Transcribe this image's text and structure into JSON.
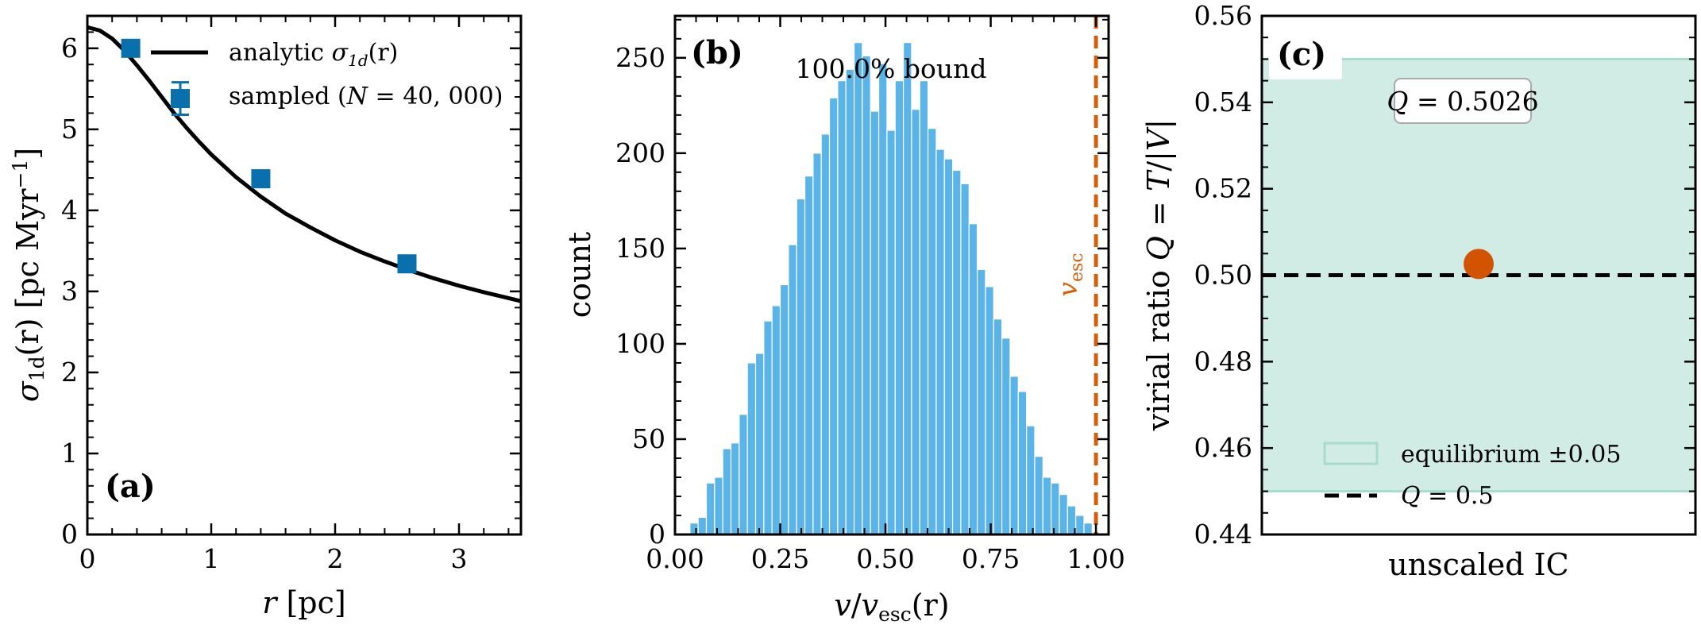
{
  "colors": {
    "analytic_line": "#000000",
    "sampled_marker": "#0a6fad",
    "histogram_bar": "#5ab4e8",
    "vesc_line": "#d35f0a",
    "equilibrium_band": "#d1ece4",
    "equilibrium_edge": "#a9dbcb",
    "virial_point": "#d35400",
    "q_line": "#000000"
  },
  "chart_data": [
    {
      "type": "line",
      "panel_tag": "(a)",
      "xlabel_var": "r",
      "xlabel_unit": " [pc]",
      "ylabel_var": "σ",
      "ylabel_sub": "1d",
      "ylabel_tail": "(r) [pc Myr",
      "ylabel_sup": "−1",
      "ylabel_end": "]",
      "xlim": [
        0,
        3.5
      ],
      "ylim": [
        0,
        6.4
      ],
      "x_ticks": [
        0,
        1,
        2,
        3
      ],
      "x_tick_labels": [
        "0",
        "1",
        "2",
        "3"
      ],
      "y_ticks": [
        0,
        1,
        2,
        3,
        4,
        5,
        6
      ],
      "y_tick_labels": [
        "0",
        "1",
        "2",
        "3",
        "4",
        "5",
        "6"
      ],
      "legend_position": "top-right",
      "series": [
        {
          "name": "analytic σ1d(r)",
          "legend_main": "analytic ",
          "legend_var": "σ",
          "legend_sub": "1d",
          "legend_tail": "(r)",
          "kind": "line",
          "x": [
            0,
            0.1,
            0.2,
            0.3,
            0.4,
            0.5,
            0.6,
            0.7,
            0.8,
            0.9,
            1.0,
            1.2,
            1.4,
            1.6,
            1.8,
            2.0,
            2.2,
            2.4,
            2.6,
            2.8,
            3.0,
            3.2,
            3.5
          ],
          "y": [
            6.26,
            6.22,
            6.12,
            5.97,
            5.79,
            5.6,
            5.4,
            5.2,
            5.02,
            4.85,
            4.69,
            4.41,
            4.17,
            3.96,
            3.79,
            3.63,
            3.49,
            3.37,
            3.26,
            3.16,
            3.07,
            2.99,
            2.88
          ]
        },
        {
          "name": "sampled (N = 40,000)",
          "legend_main": "sampled (",
          "legend_var": "N",
          "legend_tail": " = 40, 000)",
          "kind": "errorbar",
          "x": [
            0.35,
            0.75,
            1.4,
            2.58
          ],
          "y": [
            6.0,
            5.38,
            4.39,
            3.34
          ],
          "yerr": [
            0.03,
            0.2,
            0.04,
            0.03
          ]
        }
      ]
    },
    {
      "type": "bar",
      "panel_tag": "(b)",
      "annotation": "100.0% bound",
      "vline_label": "v",
      "vline_label_sub": "esc",
      "vline_x": 1.0,
      "xlabel_var": "v",
      "xlabel_sep": "/",
      "xlabel_var2": "v",
      "xlabel_sub": "esc",
      "xlabel_tail": "(r)",
      "ylabel": "count",
      "xlim": [
        0.0,
        1.03
      ],
      "ylim": [
        0,
        272
      ],
      "x_ticks": [
        0.0,
        0.25,
        0.5,
        0.75,
        1.0
      ],
      "x_tick_labels": [
        "0.00",
        "0.25",
        "0.50",
        "0.75",
        "1.00"
      ],
      "y_ticks": [
        0,
        50,
        100,
        150,
        200,
        250
      ],
      "y_tick_labels": [
        "0",
        "50",
        "100",
        "150",
        "200",
        "250"
      ],
      "bin_edges_start": 0.0355,
      "bin_width": 0.0195,
      "values": [
        6,
        9,
        27,
        30,
        45,
        48,
        63,
        90,
        95,
        112,
        120,
        131,
        152,
        176,
        188,
        200,
        210,
        229,
        238,
        244,
        258,
        251,
        222,
        247,
        212,
        238,
        258,
        223,
        238,
        213,
        202,
        197,
        191,
        184,
        163,
        139,
        130,
        113,
        103,
        83,
        75,
        57,
        41,
        30,
        27,
        21,
        15,
        10,
        6
      ]
    },
    {
      "type": "scatter",
      "panel_tag": "(c)",
      "annotation_var": "Q",
      "annotation_tail": " = 0.5026",
      "category": "unscaled IC",
      "ylabel_main": "virial ratio ",
      "ylabel_var": "Q",
      "ylabel_mid": " = ",
      "ylabel_var2": "T",
      "ylabel_sep": "/|",
      "ylabel_var3": "V",
      "ylabel_end": "|",
      "ylim": [
        0.44,
        0.56
      ],
      "y_ticks": [
        0.44,
        0.46,
        0.48,
        0.5,
        0.52,
        0.54,
        0.56
      ],
      "y_tick_labels": [
        "0.44",
        "0.46",
        "0.48",
        "0.50",
        "0.52",
        "0.54",
        "0.56"
      ],
      "band": [
        0.45,
        0.55
      ],
      "hline": 0.5,
      "point": 0.5026,
      "legend_position": "lower-right",
      "series": [
        {
          "name": "equilibrium ±0.05",
          "legend_main": "equilibrium ",
          "legend_tail": "±0.05",
          "kind": "band"
        },
        {
          "name": "Q = 0.5",
          "legend_var": "Q",
          "legend_tail": " = 0.5",
          "kind": "hline"
        }
      ]
    }
  ]
}
